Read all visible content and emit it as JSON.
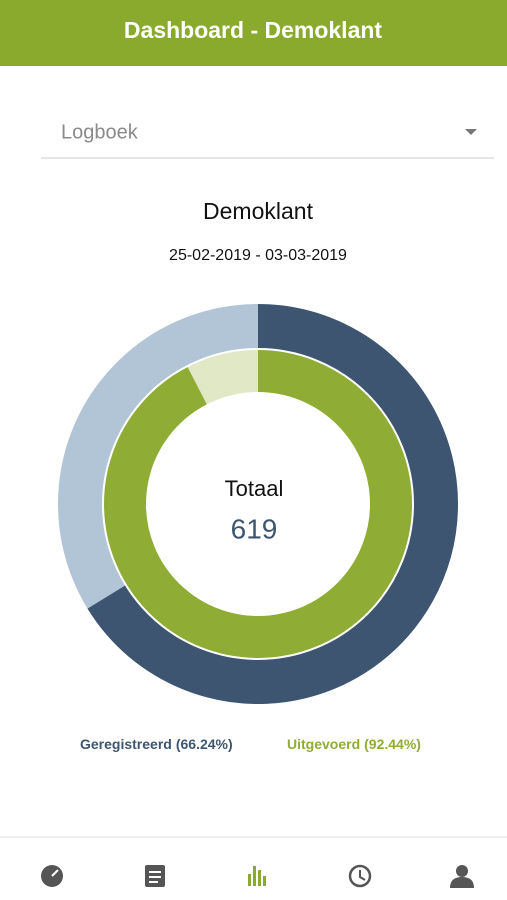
{
  "header": {
    "title": "Dashboard - Demoklant"
  },
  "dropdown": {
    "label": "Logboek"
  },
  "chart_data": {
    "type": "donut",
    "title": "Demoklant",
    "subtitle": "25-02-2019 - 03-03-2019",
    "center_label": "Totaal",
    "center_value": 619,
    "series": [
      {
        "name": "Geregistreerd",
        "color": "#3d5570",
        "track_color": "#b2c5d7",
        "values": [
          66.24
        ],
        "value_labels": [
          "(66.24%)"
        ]
      },
      {
        "name": "Uitgevoerd",
        "color": "#8fac34",
        "track_color": "#e0e8c6",
        "values": [
          92.44
        ],
        "value_labels": [
          "(92.44%)"
        ]
      }
    ]
  }
}
